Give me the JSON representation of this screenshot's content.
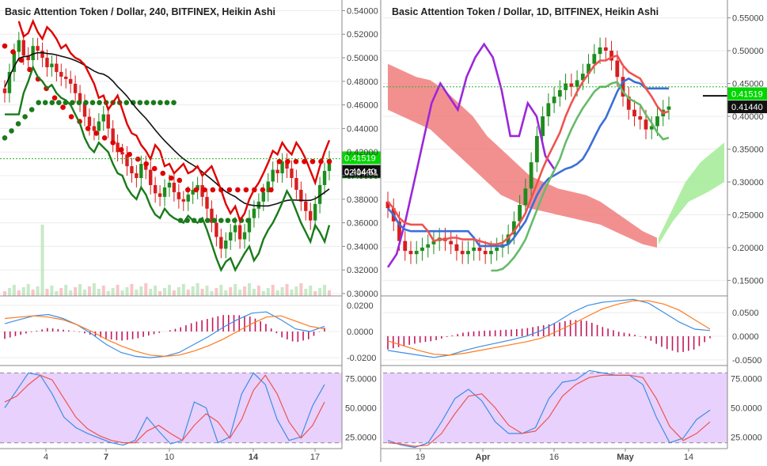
{
  "colors": {
    "bull": "#1e8c1e",
    "bear": "#d81e1e",
    "grid": "#ececec",
    "axis_text": "#444444",
    "macd_line": "#3c8ee6",
    "signal_line": "#ff7a1a",
    "histogram": "#c2185b",
    "stoch_k": "#3c8ee6",
    "stoch_d": "#ef5350",
    "stoch_fill": "#e2c6fb",
    "kijun": "#ef5350",
    "tenkan": "#3b6fd8",
    "lagging": "#9c27d8",
    "senkou_a": "#66bb6a",
    "cloud_bear": "#f07c7c",
    "cloud_bull": "#a7ec9b",
    "stop_bear": "#e00000",
    "stop_bull": "#1a7a1a",
    "ma_black": "#111111",
    "price_tag_green": "#00d600",
    "price_tag_black": "#111111"
  },
  "chart_data": [
    {
      "type": "candlestick",
      "title": "Basic Attention Token / Dollar, 240, BITFINEX, Heikin Ashi",
      "price_axis": {
        "ticks": [
          "0.54000",
          "0.52000",
          "0.50000",
          "0.48000",
          "0.46000",
          "0.44000",
          "0.42000",
          "0.40000",
          "0.38000",
          "0.36000",
          "0.34000",
          "0.32000",
          "0.30000"
        ],
        "ylim": [
          0.3,
          0.545
        ]
      },
      "x_labels": [
        "4",
        "7",
        "10",
        "14",
        "17"
      ],
      "price_tags": [
        {
          "value": "0.41519",
          "style": "green"
        },
        {
          "value": "02:04:51",
          "style": "green"
        },
        {
          "value": "0.41440",
          "style": "black"
        }
      ],
      "series": [
        {
          "name": "Heikin Ashi close",
          "values": [
            0.47,
            0.488,
            0.505,
            0.515,
            0.502,
            0.498,
            0.51,
            0.506,
            0.5,
            0.492,
            0.495,
            0.488,
            0.484,
            0.482,
            0.478,
            0.47,
            0.462,
            0.45,
            0.442,
            0.438,
            0.446,
            0.452,
            0.44,
            0.428,
            0.42,
            0.418,
            0.408,
            0.402,
            0.398,
            0.41,
            0.405,
            0.392,
            0.385,
            0.382,
            0.39,
            0.394,
            0.386,
            0.38,
            0.378,
            0.384,
            0.388,
            0.392,
            0.382,
            0.372,
            0.36,
            0.348,
            0.338,
            0.345,
            0.352,
            0.358,
            0.346,
            0.352,
            0.364,
            0.372,
            0.378,
            0.386,
            0.395,
            0.405,
            0.402,
            0.412,
            0.406,
            0.398,
            0.388,
            0.378,
            0.37,
            0.362,
            0.376,
            0.392,
            0.404,
            0.414
          ]
        },
        {
          "name": "Stop bear dots",
          "values": [
            0.51,
            0.505,
            0.498,
            0.49,
            0.482,
            0.474,
            0.466,
            0.458,
            0.45,
            0.446,
            0.44,
            0.436,
            0.432,
            0.428,
            0.422,
            0.418,
            0.414,
            0.41,
            0.406,
            0.402,
            0.398,
            0.396,
            0.388,
            0.388,
            0.388,
            0.388,
            0.388,
            0.388,
            0.388,
            0.388,
            0.388,
            0.388,
            0.388,
            0.412,
            0.412,
            0.412,
            0.412,
            0.412,
            0.412,
            0.412
          ]
        },
        {
          "name": "Stop bull dots",
          "values": [
            0.432,
            0.438,
            0.444,
            0.45,
            0.456,
            0.462,
            0.462,
            0.462,
            0.462,
            0.462,
            0.462,
            0.462,
            0.462,
            0.462,
            0.462,
            0.462,
            0.462,
            0.462,
            0.462,
            0.462,
            0.462,
            0.462,
            0.462,
            0.462,
            0.462,
            0.462,
            0.362,
            0.362,
            0.362,
            0.362,
            0.362,
            0.362,
            0.362,
            0.362,
            0.362,
            0.362,
            0.362
          ]
        }
      ]
    },
    {
      "type": "candlestick",
      "title": "Basic Attention Token / Dollar, 1D, BITFINEX, Heikin Ashi",
      "price_axis": {
        "ticks": [
          "0.55000",
          "0.50000",
          "0.45000",
          "0.40000",
          "0.35000",
          "0.30000",
          "0.25000",
          "0.20000",
          "0.15000"
        ],
        "ylim": [
          0.13,
          0.57
        ]
      },
      "x_labels": [
        "19",
        "Apr",
        "16",
        "May",
        "14"
      ],
      "price_tags": [
        {
          "value": "0.41519",
          "style": "green"
        },
        {
          "value": "0.41440",
          "style": "black"
        }
      ],
      "series": [
        {
          "name": "Heikin Ashi close",
          "values": [
            0.26,
            0.24,
            0.21,
            0.195,
            0.19,
            0.195,
            0.2,
            0.205,
            0.21,
            0.215,
            0.21,
            0.205,
            0.195,
            0.19,
            0.195,
            0.2,
            0.195,
            0.19,
            0.195,
            0.2,
            0.205,
            0.22,
            0.24,
            0.265,
            0.29,
            0.33,
            0.37,
            0.4,
            0.42,
            0.43,
            0.44,
            0.45,
            0.445,
            0.455,
            0.465,
            0.48,
            0.495,
            0.505,
            0.5,
            0.485,
            0.46,
            0.43,
            0.41,
            0.4,
            0.395,
            0.38,
            0.385,
            0.4,
            0.41,
            0.415
          ]
        },
        {
          "name": "Lagging span",
          "values": [
            0.17,
            0.19,
            0.24,
            0.3,
            0.36,
            0.42,
            0.45,
            0.43,
            0.41,
            0.46,
            0.49,
            0.51,
            0.49,
            0.44,
            0.37,
            0.37,
            0.42,
            0.4,
            0.34,
            0.32
          ]
        },
        {
          "name": "Cloud upper",
          "values": [
            0.48,
            0.47,
            0.46,
            0.455,
            0.44,
            0.42,
            0.4,
            0.37,
            0.35,
            0.33,
            0.31,
            0.3,
            0.29,
            0.285,
            0.28,
            0.27,
            0.255,
            0.24,
            0.225,
            0.215
          ]
        },
        {
          "name": "Cloud lower",
          "values": [
            0.41,
            0.4,
            0.39,
            0.38,
            0.36,
            0.34,
            0.32,
            0.3,
            0.28,
            0.27,
            0.26,
            0.255,
            0.25,
            0.245,
            0.24,
            0.235,
            0.225,
            0.215,
            0.205,
            0.2
          ]
        }
      ]
    },
    {
      "type": "line",
      "title": "",
      "indicator": "MACD (4H)",
      "y_ticks": [
        "0.0200",
        "0.0000",
        "-0.0200"
      ],
      "ylim": [
        -0.026,
        0.026
      ],
      "series": [
        {
          "name": "",
          "values": [
            0.006,
            0.009,
            0.012,
            0.013,
            0.01,
            0.005,
            -0.002,
            -0.01,
            -0.016,
            -0.019,
            -0.02,
            -0.019,
            -0.016,
            -0.01,
            -0.004,
            0.003,
            0.009,
            0.014,
            0.015,
            0.009,
            0.002,
            0.0,
            0.004
          ]
        },
        {
          "name": "",
          "values": [
            0.01,
            0.011,
            0.012,
            0.011,
            0.009,
            0.005,
            0.0,
            -0.006,
            -0.011,
            -0.015,
            -0.018,
            -0.019,
            -0.018,
            -0.015,
            -0.011,
            -0.006,
            0.0,
            0.006,
            0.011,
            0.012,
            0.008,
            0.004,
            0.002
          ]
        }
      ]
    },
    {
      "type": "line",
      "title": "",
      "indicator": "MACD (1D)",
      "y_ticks": [
        "0.0500",
        "0.0000",
        "-0.0500"
      ],
      "ylim": [
        -0.062,
        0.082
      ],
      "series": [
        {
          "name": "",
          "values": [
            -0.03,
            -0.035,
            -0.04,
            -0.045,
            -0.04,
            -0.03,
            -0.022,
            -0.015,
            -0.008,
            0.0,
            0.012,
            0.03,
            0.05,
            0.065,
            0.072,
            0.075,
            0.078,
            0.07,
            0.05,
            0.03,
            0.015,
            0.012
          ]
        },
        {
          "name": "",
          "values": [
            -0.01,
            -0.02,
            -0.03,
            -0.038,
            -0.04,
            -0.036,
            -0.03,
            -0.024,
            -0.018,
            -0.012,
            -0.004,
            0.01,
            0.025,
            0.042,
            0.058,
            0.068,
            0.075,
            0.075,
            0.068,
            0.055,
            0.035,
            0.015
          ]
        }
      ]
    },
    {
      "type": "line",
      "title": "",
      "indicator": "Stochastic RSI (4H)",
      "y_ticks": [
        "75.0000",
        "50.0000",
        "25.0000"
      ],
      "ylim": [
        15,
        85
      ],
      "series": [
        {
          "name": "",
          "values": [
            50,
            65,
            80,
            78,
            62,
            42,
            33,
            28,
            24,
            20,
            18,
            22,
            42,
            30,
            19,
            22,
            55,
            50,
            20,
            25,
            62,
            80,
            70,
            40,
            22,
            25,
            52,
            70
          ]
        },
        {
          "name": "",
          "values": [
            55,
            60,
            70,
            78,
            74,
            58,
            42,
            32,
            26,
            22,
            20,
            20,
            30,
            35,
            28,
            22,
            35,
            45,
            38,
            24,
            40,
            65,
            78,
            62,
            38,
            24,
            35,
            55
          ]
        }
      ]
    },
    {
      "type": "line",
      "title": "",
      "indicator": "Stochastic RSI (1D)",
      "y_ticks": [
        "75.0000",
        "50.0000",
        "25.0000"
      ],
      "ylim": [
        15,
        85
      ],
      "series": [
        {
          "name": "",
          "values": [
            22,
            18,
            16,
            20,
            38,
            58,
            66,
            56,
            38,
            28,
            28,
            33,
            58,
            72,
            74,
            82,
            80,
            78,
            78,
            70,
            42,
            20,
            24,
            40,
            48
          ]
        },
        {
          "name": "",
          "values": [
            20,
            19,
            17,
            18,
            28,
            45,
            60,
            62,
            50,
            35,
            28,
            30,
            42,
            60,
            70,
            76,
            78,
            78,
            78,
            76,
            58,
            34,
            22,
            28,
            38
          ]
        }
      ]
    }
  ]
}
